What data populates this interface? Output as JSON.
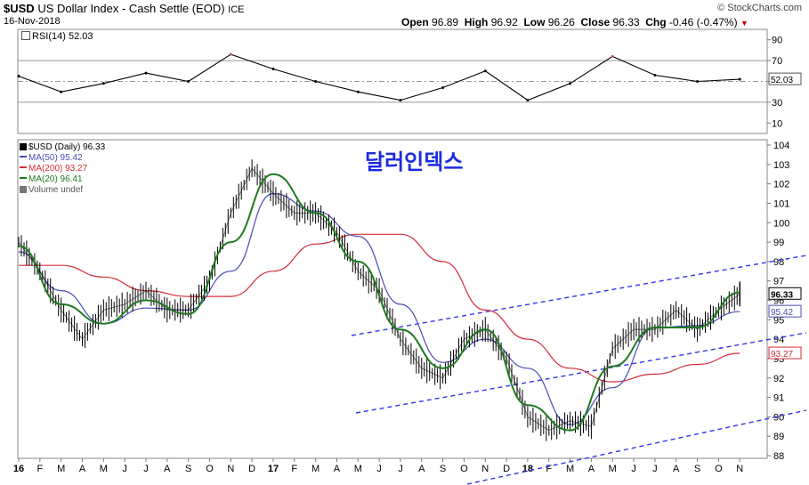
{
  "header": {
    "symbol": "$USD",
    "name": "US Dollar Index - Cash Settle (EOD)",
    "exchange": "ICE",
    "date": "16-Nov-2018",
    "brand": "© StockCharts.com",
    "open_label": "Open",
    "open": "96.89",
    "high_label": "High",
    "high": "96.92",
    "low_label": "Low",
    "low": "96.26",
    "close_label": "Close",
    "close": "96.33",
    "chg_label": "Chg",
    "chg": "-0.46 (-0.47%)"
  },
  "rsi_panel": {
    "label": "RSI(14) 52.03",
    "ticks": [
      "90",
      "70",
      "50",
      "30",
      "10"
    ],
    "current": "52.03"
  },
  "price_panel": {
    "legend": [
      {
        "text": "$USD (Daily) 96.33",
        "color": "#000000"
      },
      {
        "text": "MA(50) 95.42",
        "color": "#4b4bb5"
      },
      {
        "text": "MA(200) 93.27",
        "color": "#d22d3a"
      },
      {
        "text": "MA(20) 96.41",
        "color": "#1f7a1f"
      },
      {
        "text": "Volume undef",
        "color": "#555555"
      }
    ],
    "annotation": "달러인덱스",
    "price_tag": "96.33",
    "ma50_tag": "95.42",
    "ma200_tag": "93.27"
  },
  "colors": {
    "price": "#000000",
    "ma50": "#4b4bb5",
    "ma200": "#d22d3a",
    "ma20": "#1f7a1f",
    "channel": "#3333ee",
    "rsi_over": "#c0504d"
  },
  "chart_data": [
    {
      "type": "line",
      "title": "RSI(14)",
      "ylim": [
        0,
        100
      ],
      "reference_lines": [
        70,
        50,
        30
      ],
      "y_ticks": [
        10,
        30,
        50,
        70,
        90
      ],
      "series": [
        {
          "name": "RSI(14)",
          "x": [
            "2016-01",
            "2016-03",
            "2016-05",
            "2016-07",
            "2016-09",
            "2016-11",
            "2017-01",
            "2017-03",
            "2017-05",
            "2017-07",
            "2017-09",
            "2017-11",
            "2018-01",
            "2018-03",
            "2018-05",
            "2018-07",
            "2018-09",
            "2018-11"
          ],
          "values": [
            55,
            40,
            48,
            58,
            50,
            76,
            62,
            50,
            40,
            32,
            44,
            60,
            32,
            48,
            74,
            56,
            50,
            52.03
          ]
        }
      ]
    },
    {
      "type": "line",
      "title": "$USD (Daily) 96.33",
      "ylim": [
        88,
        104
      ],
      "y_ticks": [
        88,
        89,
        90,
        91,
        92,
        93,
        94,
        95,
        96,
        97,
        98,
        99,
        100,
        101,
        102,
        103,
        104
      ],
      "x_tick_labels": [
        "16",
        "F",
        "M",
        "A",
        "M",
        "J",
        "J",
        "A",
        "S",
        "O",
        "N",
        "D",
        "17",
        "F",
        "M",
        "A",
        "M",
        "J",
        "J",
        "A",
        "S",
        "O",
        "N",
        "D",
        "18",
        "F",
        "M",
        "A",
        "M",
        "J",
        "J",
        "A",
        "S",
        "O",
        "N"
      ],
      "x_tick_bold": [
        "16",
        "17",
        "18"
      ],
      "series": [
        {
          "name": "$USD (Daily)",
          "x": [
            "2016-01",
            "2016-02",
            "2016-03",
            "2016-04",
            "2016-05",
            "2016-06",
            "2016-07",
            "2016-08",
            "2016-09",
            "2016-10",
            "2016-11",
            "2016-12",
            "2017-01",
            "2017-02",
            "2017-03",
            "2017-04",
            "2017-05",
            "2017-06",
            "2017-07",
            "2017-08",
            "2017-09",
            "2017-10",
            "2017-11",
            "2017-12",
            "2018-01",
            "2018-02",
            "2018-03",
            "2018-04",
            "2018-05",
            "2018-06",
            "2018-07",
            "2018-08",
            "2018-09",
            "2018-10",
            "2018-11"
          ],
          "values": [
            99.0,
            97.5,
            95.5,
            94.0,
            95.5,
            95.8,
            96.5,
            95.5,
            95.5,
            97.0,
            100.5,
            102.8,
            101.5,
            100.5,
            100.5,
            99.5,
            97.5,
            96.5,
            94.0,
            92.5,
            92.0,
            94.0,
            94.5,
            93.0,
            90.0,
            89.3,
            89.8,
            89.5,
            93.5,
            94.5,
            94.5,
            95.5,
            94.5,
            95.5,
            96.33
          ]
        },
        {
          "name": "MA(50)",
          "x": [
            "2016-01",
            "2016-03",
            "2016-05",
            "2016-07",
            "2016-09",
            "2016-11",
            "2017-01",
            "2017-03",
            "2017-05",
            "2017-07",
            "2017-09",
            "2017-11",
            "2018-01",
            "2018-03",
            "2018-05",
            "2018-07",
            "2018-09",
            "2018-11"
          ],
          "values": [
            98.5,
            96.5,
            94.8,
            95.6,
            95.5,
            97.5,
            101.5,
            100.6,
            99.3,
            95.8,
            92.8,
            94.0,
            92.5,
            89.6,
            91.5,
            94.6,
            94.7,
            95.42
          ]
        },
        {
          "name": "MA(200)",
          "x": [
            "2016-01",
            "2016-03",
            "2016-05",
            "2016-07",
            "2016-09",
            "2016-11",
            "2017-01",
            "2017-03",
            "2017-05",
            "2017-07",
            "2017-09",
            "2017-11",
            "2018-01",
            "2018-03",
            "2018-05",
            "2018-07",
            "2018-09",
            "2018-11"
          ],
          "values": [
            97.8,
            97.8,
            97.2,
            96.5,
            96.2,
            96.2,
            97.5,
            98.9,
            99.4,
            99.4,
            98.0,
            95.5,
            94.0,
            92.5,
            91.8,
            92.2,
            92.7,
            93.27
          ]
        },
        {
          "name": "MA(20)",
          "x": [
            "2016-01",
            "2016-03",
            "2016-05",
            "2016-07",
            "2016-09",
            "2016-11",
            "2017-01",
            "2017-03",
            "2017-05",
            "2017-07",
            "2017-09",
            "2017-11",
            "2018-01",
            "2018-03",
            "2018-05",
            "2018-07",
            "2018-09",
            "2018-11"
          ],
          "values": [
            98.8,
            95.8,
            94.8,
            96.0,
            95.3,
            99.0,
            102.5,
            100.5,
            98.0,
            94.5,
            92.5,
            94.5,
            90.6,
            89.3,
            92.6,
            94.6,
            94.6,
            96.41
          ]
        }
      ]
    }
  ]
}
